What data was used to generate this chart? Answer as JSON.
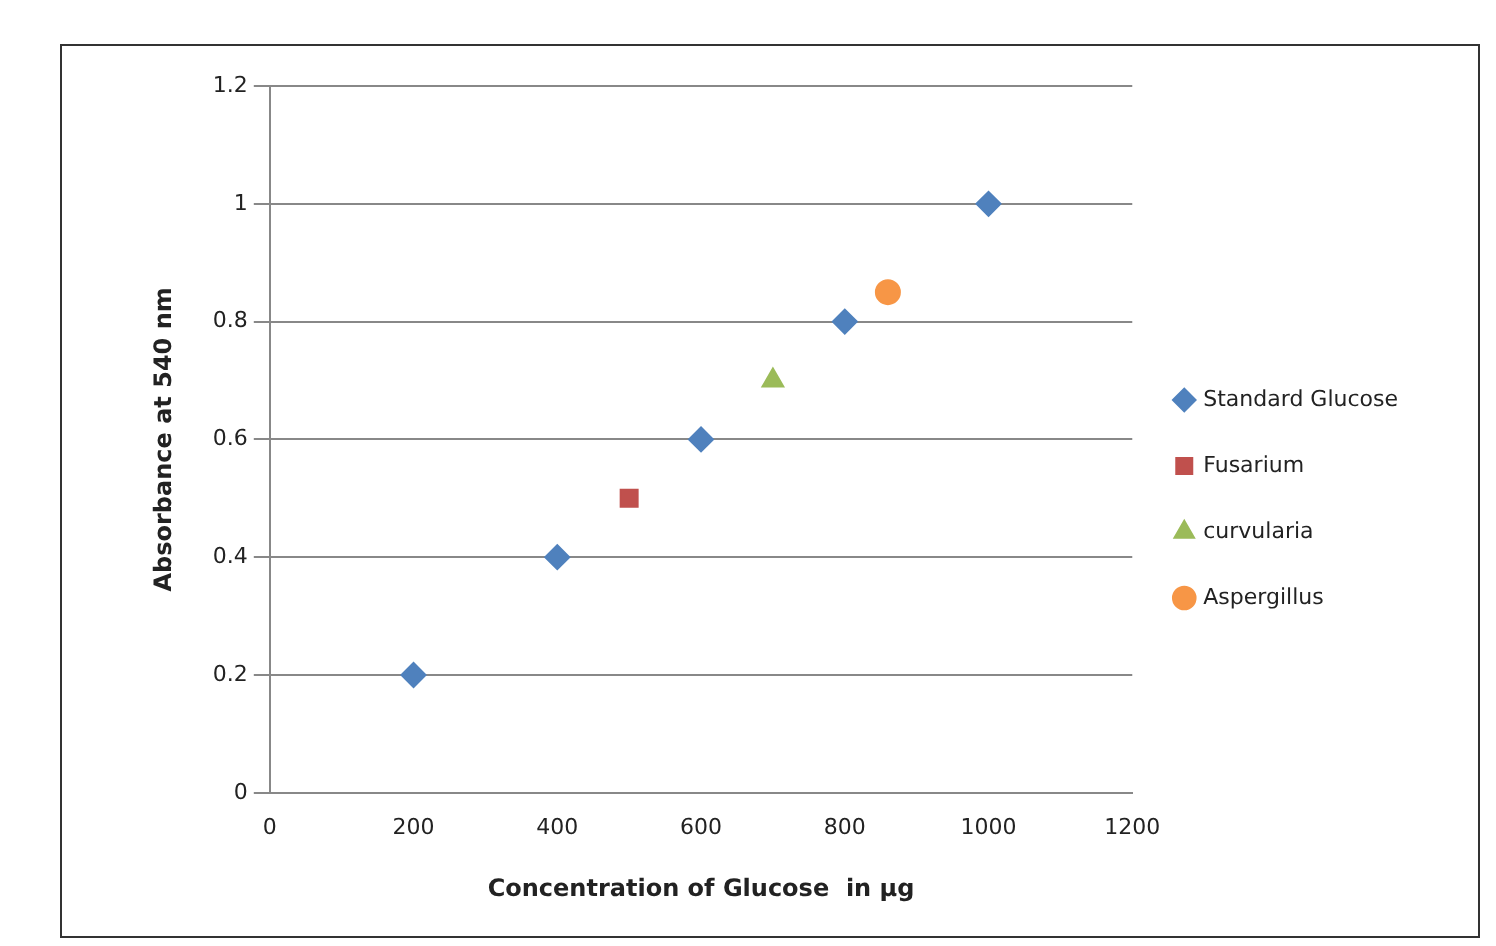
{
  "chart_data": {
    "type": "scatter",
    "xlabel": "Concentration of Glucose  in µg",
    "ylabel": "Absorbance at 540 nm",
    "xlim": [
      0,
      1200
    ],
    "xticks": [
      0,
      200,
      400,
      600,
      800,
      1000,
      1200
    ],
    "ylim": [
      0,
      1.2
    ],
    "yticks": [
      0,
      0.2,
      0.4,
      0.6,
      0.8,
      1,
      1.2
    ],
    "grid": "y",
    "legend": "right",
    "series": [
      {
        "name": "Standard Glucose",
        "color": "#4f81bd",
        "marker": "diamond",
        "x": [
          200,
          400,
          600,
          800,
          1000
        ],
        "values": [
          0.2,
          0.4,
          0.6,
          0.8,
          1
        ]
      },
      {
        "name": "Fusarium",
        "color": "#c0504d",
        "marker": "square",
        "x": [
          500
        ],
        "values": [
          0.5
        ]
      },
      {
        "name": "curvularia",
        "color": "#9bbb59",
        "marker": "triangle",
        "x": [
          700
        ],
        "values": [
          0.7
        ]
      },
      {
        "name": "Aspergillus",
        "color": "#f79646",
        "marker": "circle",
        "x": [
          860
        ],
        "values": [
          0.85
        ]
      }
    ]
  }
}
